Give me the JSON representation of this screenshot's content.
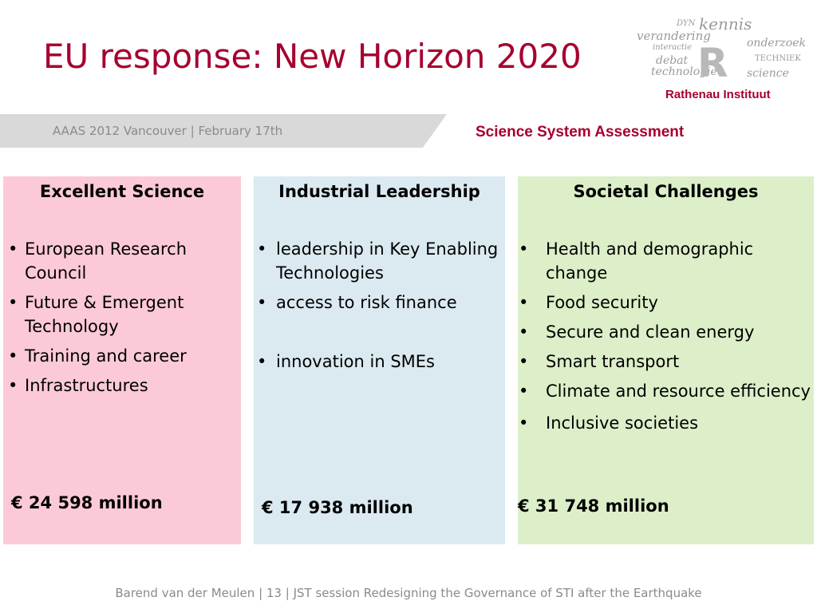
{
  "slide": {
    "title": "EU response: New Horizon 2020",
    "subtitle": "AAAS 2012 Vancouver | February 17th",
    "section_label": "Science System Assessment",
    "footer": "Barend van der Meulen |  13  | JST session Redesigning the Governance of STI after the Earthquake"
  },
  "logo": {
    "name": "Rathenau Instituut",
    "words": [
      "DYN",
      "kennis",
      "verandering",
      "onderzoek",
      "technologie",
      "science",
      "TECHNIEK",
      "interactie",
      "debat",
      "R"
    ]
  },
  "columns": [
    {
      "heading": "Excellent Science",
      "color": "#fccad6",
      "items": [
        "European Research Council",
        "Future & Emergent Technology",
        "Training and career",
        "Infrastructures"
      ],
      "amount": "€ 24 598 million"
    },
    {
      "heading": "Industrial Leadership",
      "color": "#dbeaf0",
      "items": [
        "leadership in Key Enabling Technologies",
        "access to risk finance",
        "innovation in SMEs"
      ],
      "amount": "€ 17 938 million"
    },
    {
      "heading": "Societal Challenges",
      "color": "#dcefc8",
      "items": [
        "Health and demographic change",
        "Food security",
        "Secure and clean energy",
        "Smart transport",
        "Climate and resource efficiency",
        "Inclusive societies"
      ],
      "amount": "€ 31 748 million"
    }
  ],
  "colors": {
    "title": "#a6002f",
    "banner": "#d9d9d9",
    "muted_text": "#8a8a8a"
  }
}
